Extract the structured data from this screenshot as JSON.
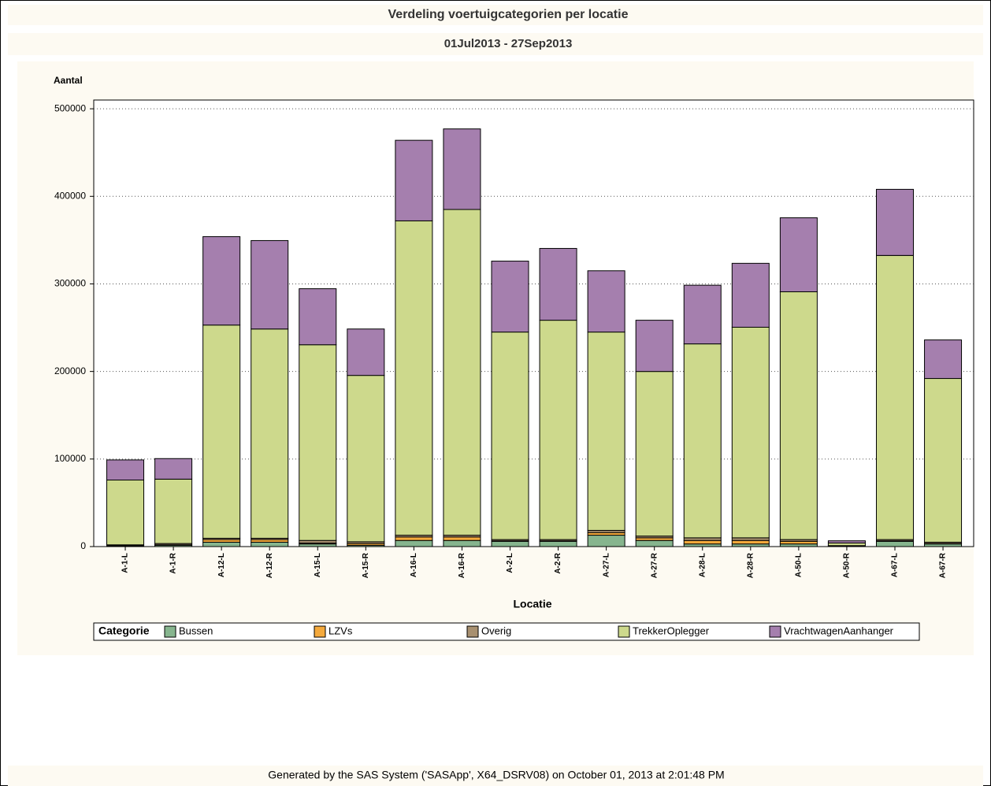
{
  "chart_data": {
    "type": "bar",
    "stacked": true,
    "title": "Verdeling voertuigcategorien per locatie",
    "subtitle": "01Jul2013 - 27Sep2013",
    "y_label": "Aantal",
    "x_label": "Locatie",
    "legend_title": "Categorie",
    "legend": "bottom",
    "categories": [
      "A-1-L",
      "A-1-R",
      "A-12-L",
      "A-12-R",
      "A-15-L",
      "A-15-R",
      "A-16-L",
      "A-16-R",
      "A-2-L",
      "A-2-R",
      "A-27-L",
      "A-27-R",
      "A-28-L",
      "A-28-R",
      "A-50-L",
      "A-50-R",
      "A-67-L",
      "A-67-R"
    ],
    "series": [
      {
        "name": "Bussen",
        "color": "#86b58e",
        "values": [
          1000,
          1500,
          5000,
          5000,
          3000,
          1500,
          7000,
          7000,
          6000,
          6000,
          13000,
          7000,
          3000,
          3000,
          3000,
          500,
          6000,
          3000
        ]
      },
      {
        "name": "LZVs",
        "color": "#f4a93c",
        "values": [
          300,
          500,
          3000,
          3000,
          1000,
          2000,
          4000,
          4000,
          500,
          500,
          3000,
          3000,
          4000,
          4000,
          3000,
          100,
          500,
          500
        ]
      },
      {
        "name": "Overig",
        "color": "#a89070",
        "values": [
          700,
          1500,
          1500,
          1500,
          3000,
          2000,
          2000,
          2000,
          1500,
          1500,
          2500,
          2000,
          3000,
          3000,
          2000,
          500,
          1500,
          1500
        ]
      },
      {
        "name": "TrekkerOplegger",
        "color": "#cdd98c",
        "values": [
          74000,
          73500,
          243500,
          239000,
          223500,
          190000,
          359000,
          372000,
          237000,
          250500,
          226500,
          188000,
          221500,
          240500,
          283000,
          3000,
          324500,
          187000
        ]
      },
      {
        "name": "VrachtwagenAanhanger",
        "color": "#a57fae",
        "values": [
          23000,
          23500,
          101000,
          101000,
          64000,
          53000,
          92000,
          92000,
          81000,
          82000,
          70000,
          58500,
          67000,
          73000,
          84500,
          2500,
          75500,
          44000
        ]
      }
    ],
    "ylim": [
      0,
      510000
    ],
    "yticks": [
      0,
      100000,
      200000,
      300000,
      400000,
      500000
    ],
    "grid": true
  },
  "footer": "Generated by the SAS System ('SASApp', X64_DSRV08) on October 01, 2013 at 2:01:48 PM"
}
